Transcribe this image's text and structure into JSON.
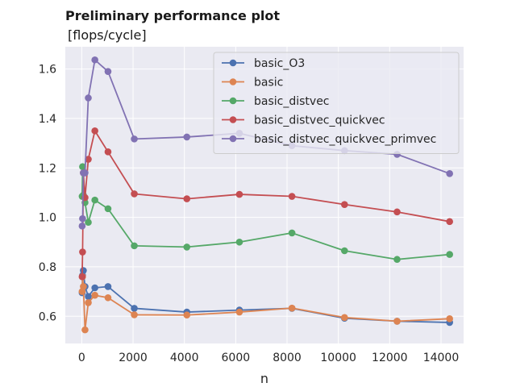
{
  "chart_data": {
    "type": "line",
    "title": "Preliminary performance plot",
    "subtitle": "[flops/cycle]",
    "xlabel": "n",
    "ylabel": "",
    "xlim": [
      -640,
      14880
    ],
    "ylim": [
      0.49,
      1.69
    ],
    "xticks": [
      0,
      2000,
      4000,
      6000,
      8000,
      10000,
      12000,
      14000
    ],
    "yticks": [
      0.6,
      0.8,
      1.0,
      1.2,
      1.4,
      1.6
    ],
    "grid": true,
    "legend_position": "top-right",
    "x": [
      16,
      32,
      64,
      128,
      256,
      512,
      1024,
      2048,
      4096,
      6144,
      8192,
      10240,
      12288,
      14336
    ],
    "series": [
      {
        "name": "basic_O3",
        "color": "#4c72b0",
        "values": [
          0.695,
          0.765,
          0.785,
          0.72,
          0.68,
          0.715,
          0.72,
          0.632,
          0.617,
          0.625,
          0.632,
          0.592,
          0.58,
          0.575
        ]
      },
      {
        "name": "basic",
        "color": "#dd8452",
        "values": [
          0.7,
          0.76,
          0.72,
          0.545,
          0.655,
          0.685,
          0.675,
          0.606,
          0.605,
          0.617,
          0.633,
          0.595,
          0.58,
          0.59
        ]
      },
      {
        "name": "basic_distvec",
        "color": "#55a868",
        "values": [
          1.085,
          1.205,
          1.09,
          1.06,
          0.98,
          1.07,
          1.035,
          0.885,
          0.88,
          0.9,
          0.937,
          0.865,
          0.83,
          0.85
        ]
      },
      {
        "name": "basic_distvec_quickvec",
        "color": "#c44e52",
        "values": [
          0.76,
          0.86,
          1.18,
          1.08,
          1.235,
          1.35,
          1.265,
          1.095,
          1.075,
          1.093,
          1.085,
          1.052,
          1.022,
          0.983
        ]
      },
      {
        "name": "basic_distvec_quickvec_primvec",
        "color": "#8172b3",
        "values": [
          0.965,
          0.995,
          1.18,
          1.18,
          1.483,
          1.637,
          1.59,
          1.317,
          1.325,
          1.34,
          1.29,
          1.27,
          1.255,
          1.177
        ]
      }
    ]
  }
}
